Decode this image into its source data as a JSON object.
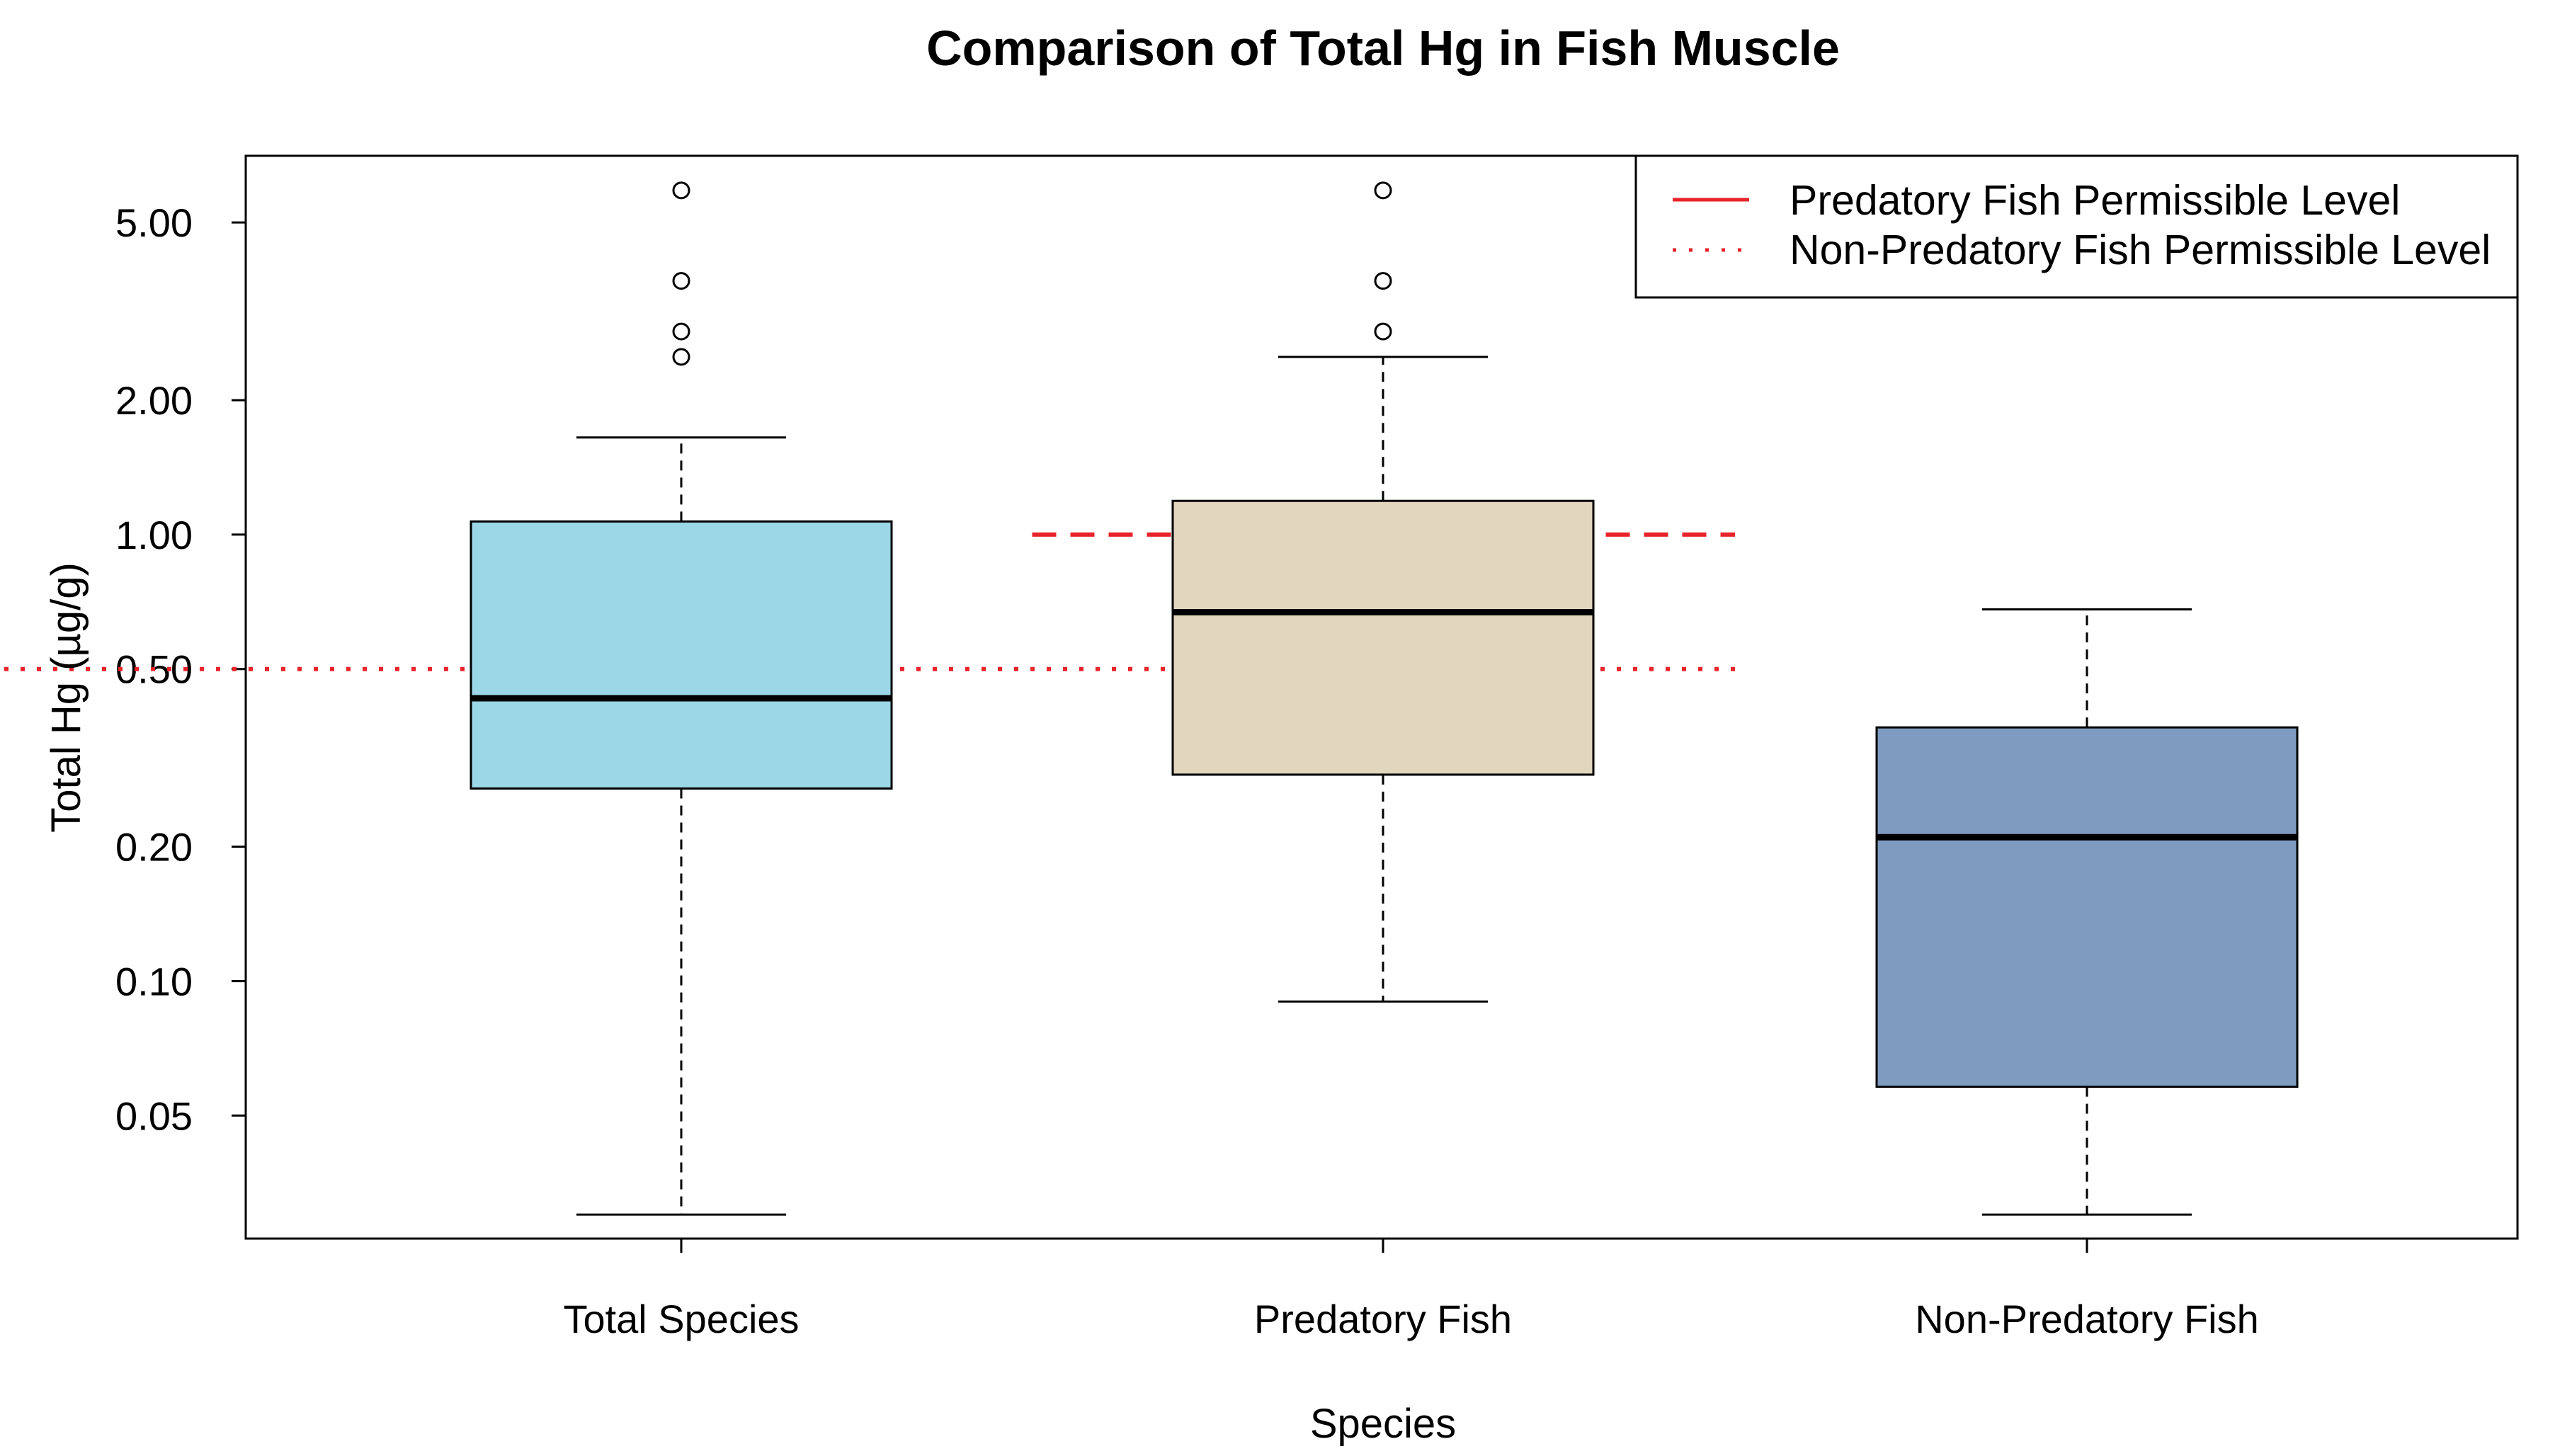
{
  "chart_data": {
    "type": "boxplot",
    "title": "Comparison of Total Hg in Fish Muscle",
    "xlabel": "Species",
    "ylabel": "Total Hg (µg/g)",
    "yscale": "log",
    "ylim": [
      0.027,
      7.0
    ],
    "yticks": [
      {
        "value": 5.0,
        "label": "5.00"
      },
      {
        "value": 2.0,
        "label": "2.00"
      },
      {
        "value": 1.0,
        "label": "1.00"
      },
      {
        "value": 0.5,
        "label": "0.50"
      },
      {
        "value": 0.2,
        "label": "0.20"
      },
      {
        "value": 0.1,
        "label": "0.10"
      },
      {
        "value": 0.05,
        "label": "0.05"
      }
    ],
    "categories": [
      "Total Species",
      "Predatory Fish",
      "Non-Predatory Fish"
    ],
    "boxes": [
      {
        "name": "Total Species",
        "whisker_low": 0.03,
        "q1": 0.27,
        "median": 0.43,
        "q3": 1.07,
        "whisker_high": 1.65,
        "outliers": [
          5.9,
          3.7,
          2.85,
          2.5
        ],
        "color": "#9BD7E6"
      },
      {
        "name": "Predatory Fish",
        "whisker_low": 0.09,
        "q1": 0.29,
        "median": 0.67,
        "q3": 1.19,
        "whisker_high": 2.5,
        "outliers": [
          5.9,
          3.7,
          2.85
        ],
        "color": "#E3D6BE"
      },
      {
        "name": "Non-Predatory Fish",
        "whisker_low": 0.03,
        "q1": 0.058,
        "median": 0.21,
        "q3": 0.37,
        "whisker_high": 0.68,
        "outliers": [],
        "color": "#7F9BC0"
      }
    ],
    "reference_lines": [
      {
        "label": "Predatory Fish Permissible Level",
        "value": 1.0,
        "style": "dashed",
        "color": "#E8232A",
        "x_from_group": 0.5,
        "x_to_group": 1.5
      },
      {
        "label": "Non-Predatory Fish Permissible Level",
        "value": 0.5,
        "style": "dotted",
        "color": "#E8232A",
        "x_from_group": 1.5,
        "x_to_group": 2.5
      }
    ],
    "legend_position": "top-right"
  }
}
